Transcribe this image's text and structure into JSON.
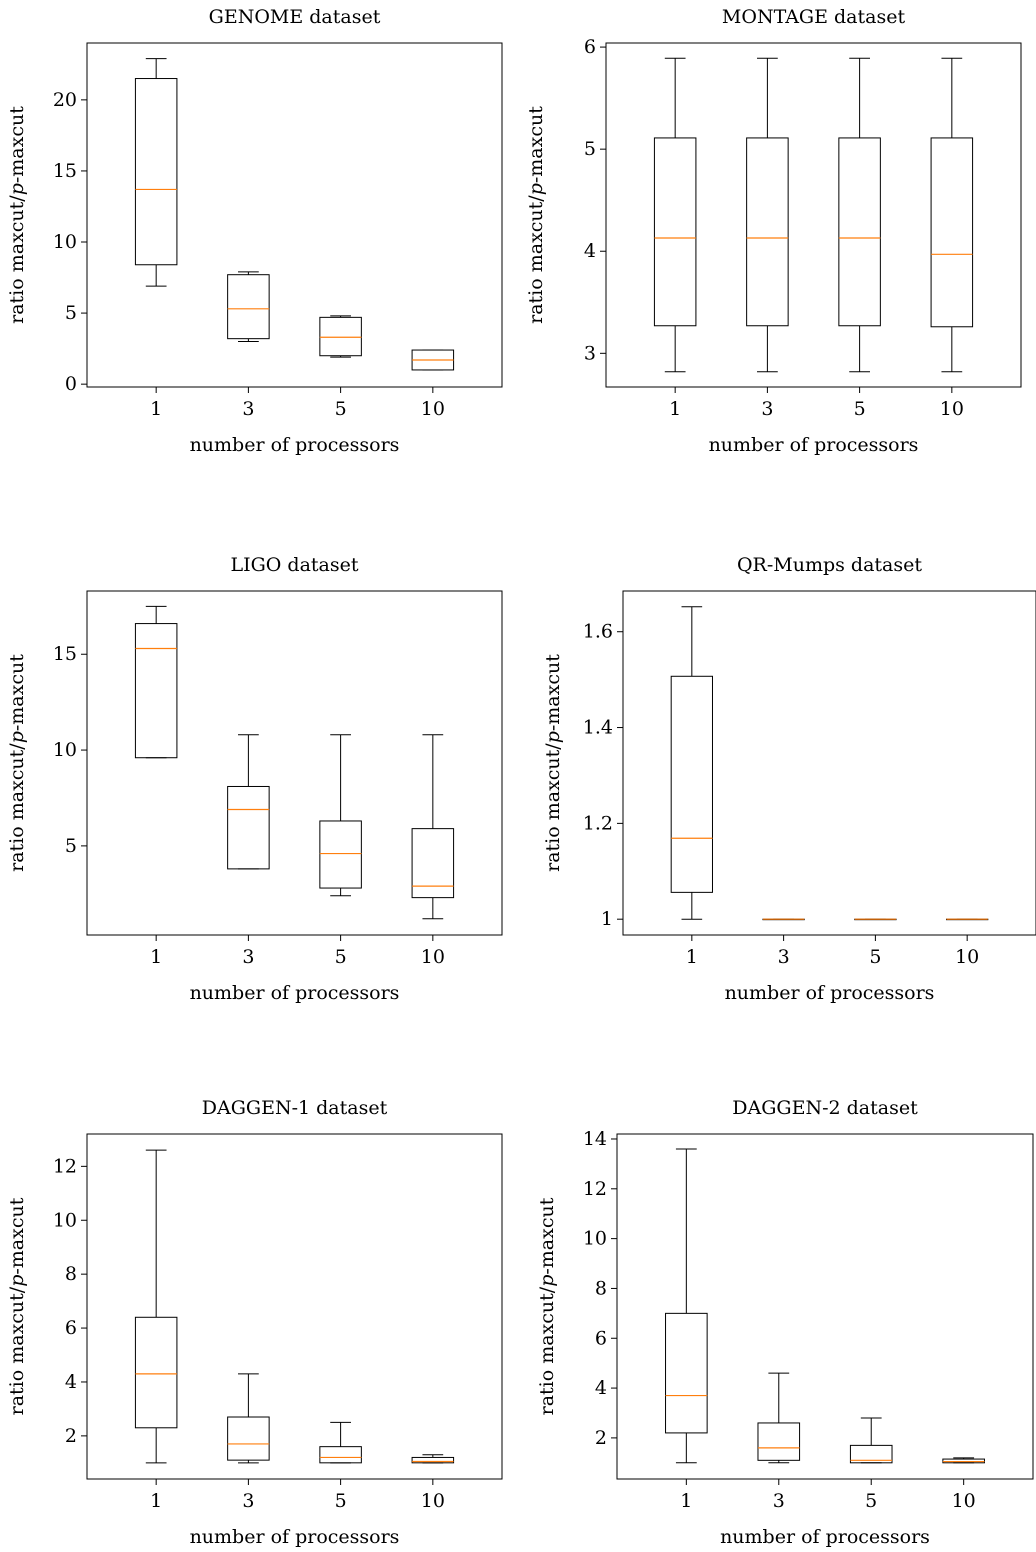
{
  "colors": {
    "box": "#000000",
    "median": "#ff7f0e",
    "background": "#ffffff"
  },
  "chart_data": [
    {
      "type": "boxplot",
      "title": "GENOME dataset",
      "xlabel": "number of processors",
      "ylabel": "ratio maxcut/p-maxcut",
      "categories": [
        "1",
        "3",
        "5",
        "10"
      ],
      "yticks": [
        0,
        5,
        10,
        15,
        20
      ],
      "ylim": [
        -0.2,
        24.0
      ],
      "boxes": [
        {
          "whislo": 6.9,
          "q1": 8.4,
          "med": 13.7,
          "q3": 21.5,
          "whishi": 22.9
        },
        {
          "whislo": 3.0,
          "q1": 3.2,
          "med": 5.3,
          "q3": 7.7,
          "whishi": 7.9
        },
        {
          "whislo": 1.9,
          "q1": 2.0,
          "med": 3.3,
          "q3": 4.7,
          "whishi": 4.8
        },
        {
          "whislo": 1.0,
          "q1": 1.0,
          "med": 1.7,
          "q3": 2.4,
          "whishi": 2.4
        }
      ]
    },
    {
      "type": "boxplot",
      "title": "MONTAGE dataset",
      "xlabel": "number of processors",
      "ylabel": "ratio maxcut/p-maxcut",
      "categories": [
        "1",
        "3",
        "5",
        "10"
      ],
      "yticks": [
        3,
        4,
        5,
        6
      ],
      "ylim": [
        2.67,
        6.04
      ],
      "boxes": [
        {
          "whislo": 2.82,
          "q1": 3.27,
          "med": 4.13,
          "q3": 5.11,
          "whishi": 5.89
        },
        {
          "whislo": 2.82,
          "q1": 3.27,
          "med": 4.13,
          "q3": 5.11,
          "whishi": 5.89
        },
        {
          "whislo": 2.82,
          "q1": 3.27,
          "med": 4.13,
          "q3": 5.11,
          "whishi": 5.89
        },
        {
          "whislo": 2.82,
          "q1": 3.26,
          "med": 3.97,
          "q3": 5.11,
          "whishi": 5.89
        }
      ]
    },
    {
      "type": "boxplot",
      "title": "LIGO dataset",
      "xlabel": "number of processors",
      "ylabel": "ratio maxcut/p-maxcut",
      "categories": [
        "1",
        "3",
        "5",
        "10"
      ],
      "yticks": [
        5,
        10,
        15
      ],
      "ylim": [
        0.35,
        18.3
      ],
      "boxes": [
        {
          "whislo": 9.6,
          "q1": 9.6,
          "med": 15.3,
          "q3": 16.6,
          "whishi": 17.5
        },
        {
          "whislo": 3.8,
          "q1": 3.8,
          "med": 6.9,
          "q3": 8.1,
          "whishi": 10.8
        },
        {
          "whislo": 2.4,
          "q1": 2.8,
          "med": 4.6,
          "q3": 6.3,
          "whishi": 10.8
        },
        {
          "whislo": 1.2,
          "q1": 2.3,
          "med": 2.9,
          "q3": 5.9,
          "whishi": 10.8
        }
      ]
    },
    {
      "type": "boxplot",
      "title": "QR-Mumps dataset",
      "xlabel": "number of processors",
      "ylabel": "ratio maxcut/p-maxcut",
      "categories": [
        "1",
        "3",
        "5",
        "10"
      ],
      "yticks": [
        1,
        1.2,
        1.4,
        1.6
      ],
      "yticklabels": [
        "1",
        "1.2",
        "1.4",
        "1.6"
      ],
      "ylim": [
        0.967,
        1.685
      ],
      "boxes": [
        {
          "whislo": 1.0,
          "q1": 1.056,
          "med": 1.169,
          "q3": 1.507,
          "whishi": 1.652
        },
        {
          "whislo": 1.0,
          "q1": 1.0,
          "med": 1.0,
          "q3": 1.0,
          "whishi": 1.0
        },
        {
          "whislo": 1.0,
          "q1": 1.0,
          "med": 1.0,
          "q3": 1.0,
          "whishi": 1.0
        },
        {
          "whislo": 1.0,
          "q1": 1.0,
          "med": 1.0,
          "q3": 1.0,
          "whishi": 1.0
        }
      ]
    },
    {
      "type": "boxplot",
      "title": "DAGGEN-1 dataset",
      "xlabel": "number of processors",
      "ylabel": "ratio maxcut/p-maxcut",
      "categories": [
        "1",
        "3",
        "5",
        "10"
      ],
      "yticks": [
        2,
        4,
        6,
        8,
        10,
        12
      ],
      "ylim": [
        0.4,
        13.2
      ],
      "boxes": [
        {
          "whislo": 1.0,
          "q1": 2.3,
          "med": 4.3,
          "q3": 6.4,
          "whishi": 12.6
        },
        {
          "whislo": 1.0,
          "q1": 1.1,
          "med": 1.7,
          "q3": 2.7,
          "whishi": 4.3
        },
        {
          "whislo": 1.0,
          "q1": 1.0,
          "med": 1.2,
          "q3": 1.6,
          "whishi": 2.5
        },
        {
          "whislo": 1.0,
          "q1": 1.0,
          "med": 1.05,
          "q3": 1.2,
          "whishi": 1.3
        }
      ]
    },
    {
      "type": "boxplot",
      "title": "DAGGEN-2 dataset",
      "xlabel": "number of processors",
      "ylabel": "ratio maxcut/p-maxcut",
      "categories": [
        "1",
        "3",
        "5",
        "10"
      ],
      "yticks": [
        2,
        4,
        6,
        8,
        10,
        12,
        14
      ],
      "ylim": [
        0.35,
        14.2
      ],
      "boxes": [
        {
          "whislo": 1.0,
          "q1": 2.2,
          "med": 3.7,
          "q3": 7.0,
          "whishi": 13.6
        },
        {
          "whislo": 1.0,
          "q1": 1.1,
          "med": 1.6,
          "q3": 2.6,
          "whishi": 4.6
        },
        {
          "whislo": 1.0,
          "q1": 1.0,
          "med": 1.1,
          "q3": 1.7,
          "whishi": 2.8
        },
        {
          "whislo": 1.0,
          "q1": 1.0,
          "med": 1.05,
          "q3": 1.15,
          "whishi": 1.2
        }
      ]
    }
  ]
}
